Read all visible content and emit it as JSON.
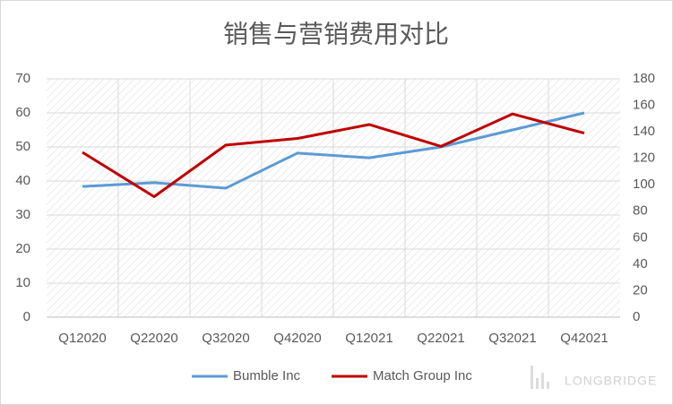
{
  "chart_data": {
    "type": "line",
    "title": "销售与营销费用对比",
    "categories": [
      "Q12020",
      "Q22020",
      "Q32020",
      "Q42020",
      "Q12021",
      "Q22021",
      "Q32021",
      "Q42021"
    ],
    "series": [
      {
        "name": "Bumble Inc",
        "color": "#5b9bd5",
        "values": [
          38.4,
          39.5,
          37.9,
          48.2,
          46.8,
          50,
          55,
          60
        ]
      },
      {
        "name": "Match Group Inc",
        "color": "#c00000",
        "axis": "y2",
        "values": [
          124.5,
          91,
          130,
          135,
          145.5,
          129,
          153.5,
          139
        ]
      }
    ],
    "ylim": [
      0,
      70
    ],
    "yticks": [
      0,
      10,
      20,
      30,
      40,
      50,
      60,
      70
    ],
    "y2lim": [
      0,
      180
    ],
    "y2ticks": [
      0,
      20,
      40,
      60,
      80,
      100,
      120,
      140,
      160,
      180
    ],
    "grid": true,
    "legend": "bottom",
    "watermark": "LONGBRIDGE"
  }
}
